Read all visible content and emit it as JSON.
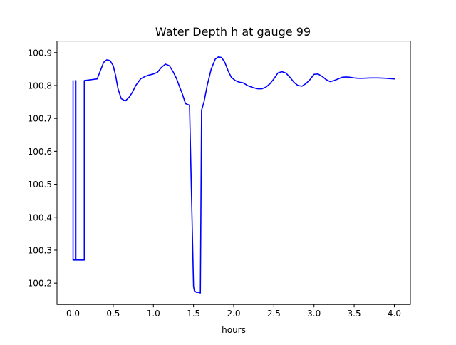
{
  "chart_data": {
    "type": "line",
    "title": "Water Depth h at gauge 99",
    "xlabel": "hours",
    "ylabel": "",
    "xlim": [
      -0.2,
      4.2
    ],
    "ylim": [
      100.135,
      100.935
    ],
    "xticks": [
      0.0,
      0.5,
      1.0,
      1.5,
      2.0,
      2.5,
      3.0,
      3.5,
      4.0
    ],
    "xtick_labels": [
      "0.0",
      "0.5",
      "1.0",
      "1.5",
      "2.0",
      "2.5",
      "3.0",
      "3.5",
      "4.0"
    ],
    "yticks": [
      100.2,
      100.3,
      100.4,
      100.5,
      100.6,
      100.7,
      100.8,
      100.9
    ],
    "ytick_labels": [
      "100.2",
      "100.3",
      "100.4",
      "100.5",
      "100.6",
      "100.7",
      "100.8",
      "100.9"
    ],
    "grid": false,
    "legend": "none",
    "series": [
      {
        "color": "#0000ff",
        "x": [
          0.0,
          0.0,
          0.02,
          0.03,
          0.03,
          0.035,
          0.035,
          0.04,
          0.04,
          0.14,
          0.14,
          0.3,
          0.34,
          0.38,
          0.42,
          0.46,
          0.5,
          0.53,
          0.56,
          0.6,
          0.65,
          0.7,
          0.74,
          0.78,
          0.84,
          0.9,
          0.95,
          1.0,
          1.05,
          1.1,
          1.15,
          1.2,
          1.25,
          1.29,
          1.32,
          1.36,
          1.4,
          1.45,
          1.5,
          1.5,
          1.51,
          1.535,
          1.56,
          1.585,
          1.6,
          1.6,
          1.63,
          1.67,
          1.72,
          1.77,
          1.81,
          1.85,
          1.89,
          1.93,
          1.97,
          2.02,
          2.07,
          2.12,
          2.17,
          2.25,
          2.3,
          2.35,
          2.4,
          2.45,
          2.5,
          2.55,
          2.6,
          2.65,
          2.7,
          2.75,
          2.8,
          2.85,
          2.9,
          2.95,
          3.0,
          3.05,
          3.1,
          3.15,
          3.2,
          3.25,
          3.3,
          3.35,
          3.4,
          3.45,
          3.5,
          3.55,
          3.6,
          3.7,
          3.8,
          3.9,
          4.0
        ],
        "y": [
          100.815,
          100.27,
          100.27,
          100.27,
          100.815,
          100.815,
          100.27,
          100.27,
          100.27,
          100.27,
          100.815,
          100.82,
          100.845,
          100.87,
          100.878,
          100.876,
          100.86,
          100.83,
          100.79,
          100.76,
          100.753,
          100.765,
          100.78,
          100.8,
          100.82,
          100.828,
          100.832,
          100.835,
          100.84,
          100.855,
          100.865,
          100.86,
          100.84,
          100.82,
          100.8,
          100.775,
          100.745,
          100.74,
          100.19,
          100.19,
          100.177,
          100.172,
          100.172,
          100.17,
          100.725,
          100.725,
          100.75,
          100.8,
          100.85,
          100.88,
          100.887,
          100.885,
          100.87,
          100.845,
          100.825,
          100.815,
          100.81,
          100.808,
          100.8,
          100.793,
          100.79,
          100.79,
          100.795,
          100.805,
          100.82,
          100.838,
          100.842,
          100.838,
          100.825,
          100.81,
          100.8,
          100.798,
          100.806,
          100.818,
          100.834,
          100.835,
          100.828,
          100.818,
          100.812,
          100.815,
          100.82,
          100.825,
          100.826,
          100.825,
          100.823,
          100.822,
          100.822,
          100.823,
          100.823,
          100.822,
          100.82
        ]
      }
    ]
  }
}
